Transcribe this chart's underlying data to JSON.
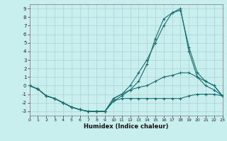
{
  "xlabel": "Humidex (Indice chaleur)",
  "bg_color": "#c8eeee",
  "line_color": "#1a6e6e",
  "grid_color": "#b0d8d8",
  "xlim": [
    0,
    23
  ],
  "ylim": [
    -3.5,
    9.5
  ],
  "xticks": [
    0,
    1,
    2,
    3,
    4,
    5,
    6,
    7,
    8,
    9,
    10,
    11,
    12,
    13,
    14,
    15,
    16,
    17,
    18,
    19,
    20,
    21,
    22,
    23
  ],
  "yticks": [
    -3,
    -2,
    -1,
    0,
    1,
    2,
    3,
    4,
    5,
    6,
    7,
    8,
    9
  ],
  "series": [
    {
      "x": [
        0,
        1,
        2,
        3,
        4,
        5,
        6,
        7,
        8,
        9,
        10,
        11,
        12,
        13,
        14,
        15,
        16,
        17,
        18,
        19,
        20,
        21,
        22,
        23
      ],
      "y": [
        0,
        -0.4,
        -1.2,
        -1.5,
        -2.0,
        -2.5,
        -2.8,
        -3.0,
        -3.0,
        -3.0,
        -1.8,
        -1.5,
        -1.5,
        -1.5,
        -1.5,
        -1.5,
        -1.5,
        -1.5,
        -1.5,
        -1.2,
        -1.0,
        -1.0,
        -1.0,
        -1.2
      ]
    },
    {
      "x": [
        0,
        1,
        2,
        3,
        4,
        5,
        6,
        7,
        8,
        9,
        10,
        11,
        12,
        13,
        14,
        15,
        16,
        17,
        18,
        19,
        20,
        21,
        22,
        23
      ],
      "y": [
        0,
        -0.4,
        -1.2,
        -1.5,
        -2.0,
        -2.5,
        -2.8,
        -3.0,
        -3.0,
        -3.0,
        -1.5,
        -1.0,
        -0.5,
        -0.2,
        0.0,
        0.5,
        1.0,
        1.2,
        1.5,
        1.5,
        1.0,
        0.5,
        0.0,
        -1.2
      ]
    },
    {
      "x": [
        0,
        1,
        2,
        3,
        4,
        5,
        6,
        7,
        8,
        9,
        10,
        11,
        12,
        13,
        14,
        15,
        16,
        17,
        18,
        19,
        20,
        21,
        22,
        23
      ],
      "y": [
        0,
        -0.4,
        -1.2,
        -1.5,
        -2.0,
        -2.5,
        -2.8,
        -3.0,
        -3.0,
        -3.0,
        -1.5,
        -1.0,
        0.0,
        1.5,
        3.0,
        5.0,
        7.0,
        8.5,
        8.8,
        4.5,
        1.5,
        0.5,
        0.0,
        -1.2
      ]
    },
    {
      "x": [
        0,
        1,
        2,
        3,
        4,
        5,
        6,
        7,
        8,
        9,
        10,
        11,
        12,
        13,
        14,
        15,
        16,
        17,
        18,
        19,
        20,
        21,
        22,
        23
      ],
      "y": [
        0,
        -0.4,
        -1.2,
        -1.5,
        -2.0,
        -2.5,
        -2.8,
        -3.0,
        -3.0,
        -3.0,
        -1.8,
        -1.2,
        -0.5,
        0.5,
        2.5,
        5.5,
        7.8,
        8.5,
        9.0,
        4.0,
        1.0,
        0.0,
        -0.5,
        -1.2
      ]
    }
  ]
}
